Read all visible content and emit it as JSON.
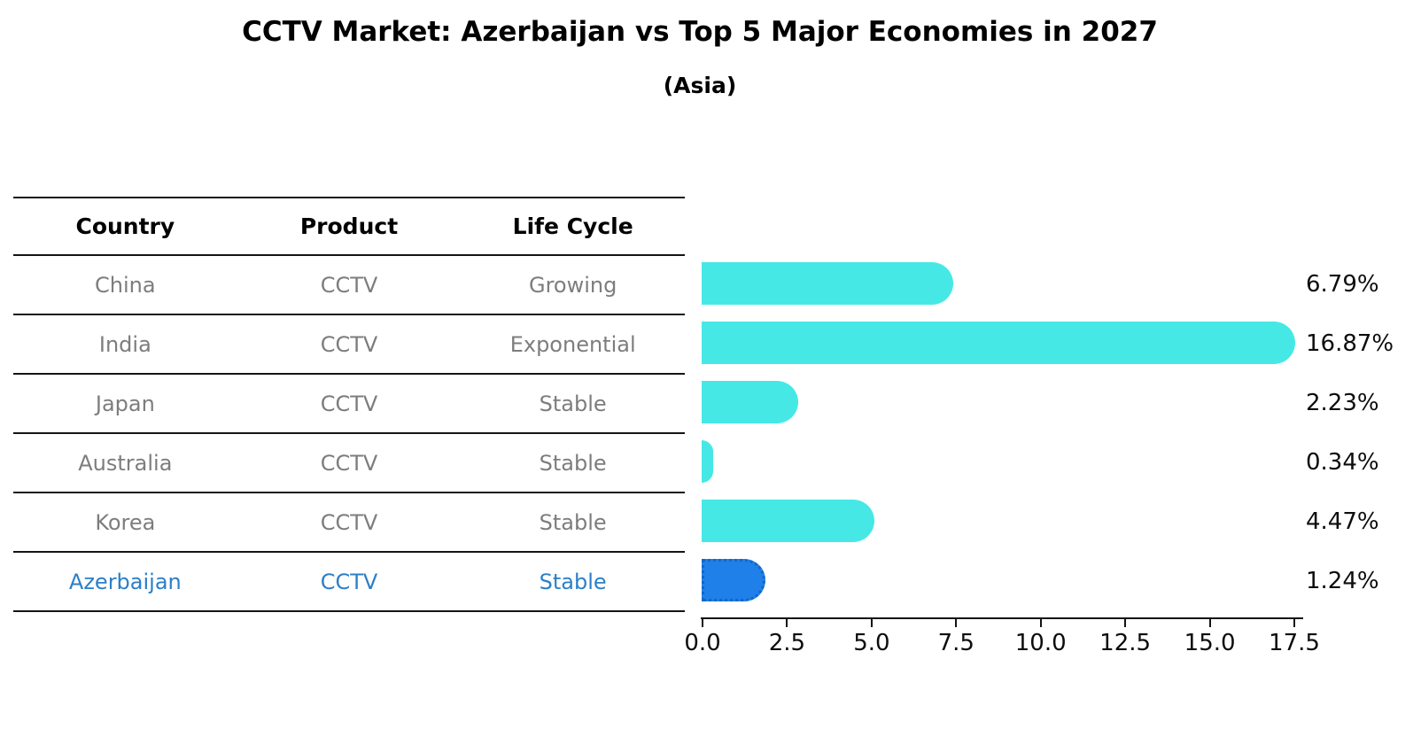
{
  "title": "CCTV Market: Azerbaijan vs Top 5 Major Economies in 2027",
  "subtitle": "(Asia)",
  "colors": {
    "bar": "#46e8e6",
    "highlight_bar": "#1e80e8",
    "highlight_border": "#1565c8",
    "highlight_text": "#2b7fc9",
    "row_text": "#7d7d7d",
    "axis_text": "#0d0d0d"
  },
  "table": {
    "headers": [
      "Country",
      "Product",
      "Life Cycle"
    ],
    "rows": [
      {
        "country": "China",
        "product": "CCTV",
        "life_cycle": "Growing",
        "highlight": false
      },
      {
        "country": "India",
        "product": "CCTV",
        "life_cycle": "Exponential",
        "highlight": false
      },
      {
        "country": "Japan",
        "product": "CCTV",
        "life_cycle": "Stable",
        "highlight": false
      },
      {
        "country": "Australia",
        "product": "CCTV",
        "life_cycle": "Stable",
        "highlight": false
      },
      {
        "country": "Korea",
        "product": "CCTV",
        "life_cycle": "Stable",
        "highlight": false
      },
      {
        "country": "Azerbaijan",
        "product": "CCTV",
        "life_cycle": "Stable",
        "highlight": true
      }
    ]
  },
  "chart_data": {
    "type": "bar",
    "orientation": "horizontal",
    "title": "CCTV Market: Azerbaijan vs Top 5 Major Economies in 2027",
    "subtitle": "(Asia)",
    "categories": [
      "China",
      "India",
      "Japan",
      "Australia",
      "Korea",
      "Azerbaijan"
    ],
    "values": [
      6.79,
      16.87,
      2.23,
      0.34,
      4.47,
      1.24
    ],
    "value_labels": [
      "6.79%",
      "16.87%",
      "2.23%",
      "0.34%",
      "4.47%",
      "1.24%"
    ],
    "highlight_index": 5,
    "xlabel": "",
    "ylabel": "",
    "xlim": [
      0,
      17.5
    ],
    "x_ticks": [
      "0.0",
      "2.5",
      "5.0",
      "7.5",
      "10.0",
      "12.5",
      "15.0",
      "17.5"
    ],
    "grid": false,
    "legend": false
  }
}
